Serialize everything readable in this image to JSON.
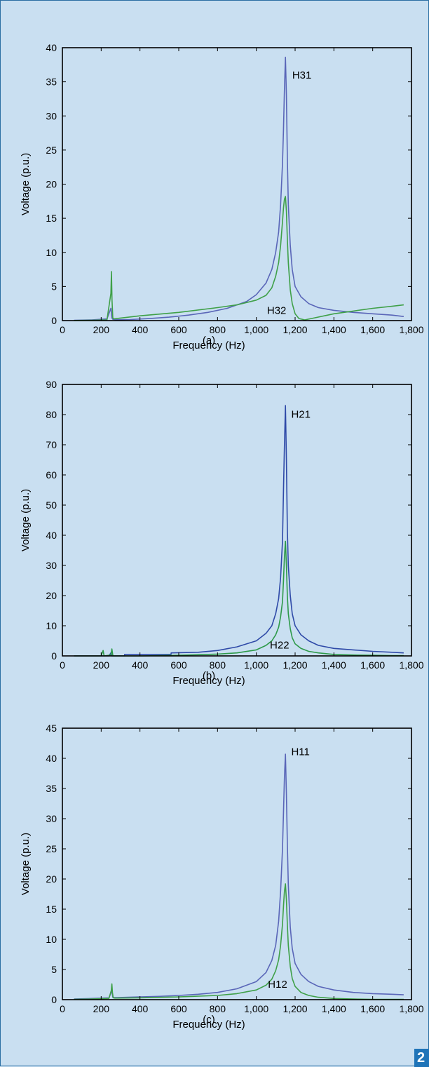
{
  "background_color": "#c9dff1",
  "badge": {
    "text": "2",
    "color": "#1f74b8"
  },
  "chart_data": [
    {
      "type": "line",
      "caption": "(a)",
      "xlabel": "Frequency (Hz)",
      "ylabel": "Voltage (p.u.)",
      "xlim": [
        0,
        1800
      ],
      "ylim": [
        0,
        40
      ],
      "xticks": [
        0,
        200,
        400,
        600,
        800,
        1000,
        1200,
        1400,
        1600,
        1800
      ],
      "xtick_labels": [
        "0",
        "200",
        "400",
        "600",
        "800",
        "1,000",
        "1,200",
        "1,400",
        "1,600",
        "1,800"
      ],
      "yticks": [
        0,
        5,
        10,
        15,
        20,
        25,
        30,
        35,
        40
      ],
      "ytick_labels": [
        "0",
        "5",
        "10",
        "15",
        "20",
        "25",
        "30",
        "35",
        "40"
      ],
      "annotations": [
        {
          "text": "H31",
          "x": 1185,
          "y": 35.5
        },
        {
          "text": "H32",
          "x": 1055,
          "y": 1.0
        }
      ],
      "series": [
        {
          "color": "#5a66b8",
          "x": [
            60,
            150,
            230,
            250,
            255,
            260,
            265,
            280,
            350,
            450,
            550,
            650,
            750,
            850,
            950,
            1000,
            1050,
            1080,
            1100,
            1115,
            1125,
            1135,
            1140,
            1145,
            1150,
            1155,
            1160,
            1165,
            1175,
            1185,
            1200,
            1230,
            1270,
            1320,
            1400,
            1500,
            1600,
            1700,
            1760
          ],
          "y": [
            0.05,
            0.1,
            0.25,
            1.8,
            0.4,
            0.2,
            0.15,
            0.12,
            0.15,
            0.3,
            0.5,
            0.8,
            1.2,
            1.8,
            2.8,
            3.8,
            5.5,
            7.5,
            10,
            13,
            17,
            23,
            28,
            34,
            38.6,
            33,
            24,
            17,
            11,
            7.5,
            5,
            3.5,
            2.5,
            1.9,
            1.5,
            1.2,
            1.0,
            0.8,
            0.6
          ]
        },
        {
          "color": "#3fa048",
          "x": [
            60,
            150,
            230,
            250,
            253,
            256,
            260,
            265,
            280,
            400,
            600,
            800,
            900,
            1000,
            1050,
            1080,
            1100,
            1115,
            1125,
            1135,
            1140,
            1145,
            1150,
            1155,
            1160,
            1165,
            1175,
            1185,
            1200,
            1220,
            1250,
            1300,
            1400,
            1500,
            1600,
            1700,
            1760
          ],
          "y": [
            0.02,
            0.05,
            0.1,
            4.0,
            7.2,
            3.0,
            0.4,
            0.25,
            0.3,
            0.7,
            1.2,
            1.9,
            2.3,
            3.0,
            3.7,
            4.8,
            6.5,
            8.5,
            11,
            14.5,
            16.5,
            17.8,
            18.2,
            16,
            12,
            8.5,
            4.5,
            2.5,
            1.0,
            0.3,
            0.1,
            0.4,
            1.0,
            1.4,
            1.8,
            2.1,
            2.3
          ]
        }
      ]
    },
    {
      "type": "line",
      "caption": "(b)",
      "xlabel": "Frequency (Hz)",
      "ylabel": "Voltage (p.u.)",
      "xlim": [
        0,
        1800
      ],
      "ylim": [
        0,
        90
      ],
      "xticks": [
        0,
        200,
        400,
        600,
        800,
        1000,
        1200,
        1400,
        1600,
        1800
      ],
      "xtick_labels": [
        "0",
        "200",
        "400",
        "600",
        "800",
        "1,000",
        "1,200",
        "1,400",
        "1,600",
        "1,800"
      ],
      "yticks": [
        0,
        10,
        20,
        30,
        40,
        50,
        60,
        70,
        80,
        90
      ],
      "ytick_labels": [
        "0",
        "10",
        "20",
        "30",
        "40",
        "50",
        "60",
        "70",
        "80",
        "90"
      ],
      "annotations": [
        {
          "text": "H21",
          "x": 1180,
          "y": 79
        },
        {
          "text": "H22",
          "x": 1070,
          "y": 2.5
        }
      ],
      "series": [
        {
          "color": "#2f4aa8",
          "x": [
            60,
            200,
            240,
            250,
            255,
            262,
            270,
            320,
            321,
            500,
            560,
            561,
            700,
            800,
            900,
            1000,
            1050,
            1080,
            1100,
            1115,
            1125,
            1135,
            1140,
            1145,
            1150,
            1155,
            1160,
            1165,
            1175,
            1185,
            1200,
            1230,
            1270,
            1320,
            1400,
            1500,
            1600,
            1700,
            1760
          ],
          "y": [
            0,
            0,
            0,
            1.0,
            0,
            0,
            0,
            0,
            0.5,
            0.5,
            0.5,
            1.0,
            1.2,
            1.8,
            3.0,
            5.0,
            7.5,
            10,
            14,
            19,
            26,
            38,
            55,
            70,
            83,
            65,
            42,
            30,
            20,
            14,
            10,
            7,
            5,
            3.5,
            2.5,
            2.0,
            1.5,
            1.2,
            1.0
          ]
        },
        {
          "color": "#2e9a4a",
          "x": [
            60,
            200,
            210,
            215,
            250,
            255,
            260,
            265,
            280,
            400,
            600,
            800,
            900,
            1000,
            1050,
            1080,
            1100,
            1115,
            1125,
            1135,
            1140,
            1145,
            1150,
            1155,
            1160,
            1165,
            1175,
            1185,
            1200,
            1230,
            1270,
            1320,
            1400,
            1500,
            1600,
            1700,
            1760
          ],
          "y": [
            0,
            0,
            1.8,
            0,
            0.3,
            2.3,
            0.2,
            0,
            0,
            0,
            0.2,
            0.6,
            1.0,
            2.0,
            3.5,
            5.0,
            7.0,
            9.5,
            13,
            18,
            25,
            33,
            38,
            30,
            20,
            14,
            9,
            6,
            4,
            2.5,
            1.5,
            1.0,
            0.5,
            0.3,
            0.2,
            0.1,
            0.1
          ]
        }
      ]
    },
    {
      "type": "line",
      "caption": "(c)",
      "xlabel": "Frequency (Hz)",
      "ylabel": "Voltage (p.u.)",
      "xlim": [
        0,
        1800
      ],
      "ylim": [
        0,
        45
      ],
      "xticks": [
        0,
        200,
        400,
        600,
        800,
        1000,
        1200,
        1400,
        1600,
        1800
      ],
      "xtick_labels": [
        "0",
        "200",
        "400",
        "600",
        "800",
        "1,000",
        "1,200",
        "1,400",
        "1,600",
        "1,800"
      ],
      "yticks": [
        0,
        5,
        10,
        15,
        20,
        25,
        30,
        35,
        40,
        45
      ],
      "ytick_labels": [
        "0",
        "5",
        "10",
        "15",
        "20",
        "25",
        "30",
        "35",
        "40",
        "45"
      ],
      "annotations": [
        {
          "text": "H11",
          "x": 1180,
          "y": 40.5
        },
        {
          "text": "H12",
          "x": 1060,
          "y": 2.0
        }
      ],
      "series": [
        {
          "color": "#5a66b8",
          "x": [
            60,
            150,
            240,
            255,
            260,
            265,
            280,
            400,
            500,
            600,
            700,
            800,
            900,
            1000,
            1050,
            1080,
            1100,
            1115,
            1125,
            1135,
            1140,
            1145,
            1150,
            1155,
            1160,
            1165,
            1175,
            1185,
            1200,
            1230,
            1270,
            1320,
            1400,
            1500,
            1600,
            1700,
            1760
          ],
          "y": [
            0.1,
            0.2,
            0.3,
            1.5,
            0.4,
            0.35,
            0.35,
            0.45,
            0.55,
            0.7,
            0.9,
            1.2,
            1.8,
            3.0,
            4.5,
            6.5,
            9,
            13,
            18,
            25,
            31,
            37,
            40.7,
            34,
            26,
            19,
            12,
            8.5,
            6,
            4.2,
            3.0,
            2.2,
            1.6,
            1.2,
            1.0,
            0.9,
            0.8
          ]
        },
        {
          "color": "#3fa048",
          "x": [
            60,
            150,
            240,
            252,
            255,
            258,
            262,
            270,
            400,
            600,
            800,
            900,
            1000,
            1050,
            1080,
            1100,
            1115,
            1125,
            1135,
            1140,
            1145,
            1150,
            1155,
            1160,
            1165,
            1175,
            1185,
            1200,
            1230,
            1270,
            1320,
            1400,
            1500,
            1600,
            1700,
            1760
          ],
          "y": [
            0.05,
            0.1,
            0.2,
            1.5,
            2.6,
            1.2,
            0.3,
            0.25,
            0.3,
            0.45,
            0.7,
            1.0,
            1.6,
            2.4,
            3.4,
            4.8,
            6.6,
            9,
            12.5,
            15.5,
            18,
            19.2,
            16.5,
            12.5,
            9,
            5.5,
            3.5,
            2.2,
            1.2,
            0.7,
            0.4,
            0.2,
            0.1,
            0.05,
            0.05,
            0.05
          ]
        }
      ]
    }
  ]
}
